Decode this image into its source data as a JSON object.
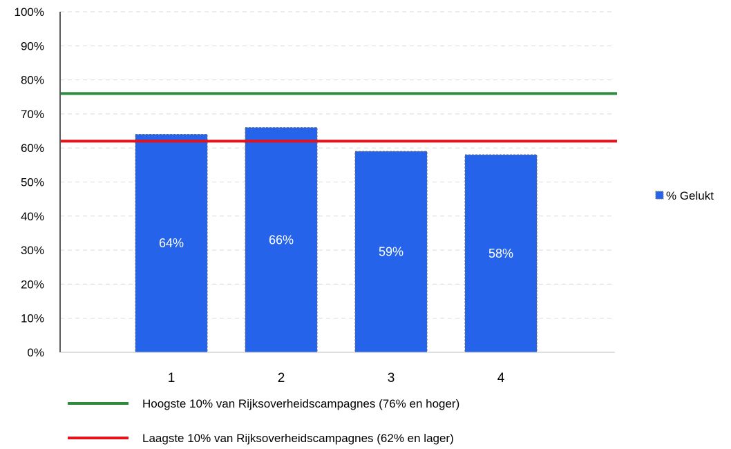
{
  "chart_data": {
    "type": "bar",
    "categories": [
      "1",
      "2",
      "3",
      "4"
    ],
    "series": [
      {
        "name": "% Gelukt",
        "values": [
          0.64,
          0.66,
          0.59,
          0.58
        ],
        "labels": [
          "64%",
          "66%",
          "59%",
          "58%"
        ],
        "color": "#2563eb"
      }
    ],
    "ylim": [
      0,
      1
    ],
    "yticks": [
      "0%",
      "10%",
      "20%",
      "30%",
      "40%",
      "50%",
      "60%",
      "70%",
      "80%",
      "90%",
      "100%"
    ],
    "grid": true,
    "legend_position": "right",
    "reference_lines": [
      {
        "value": 0.76,
        "color": "#2e8b3e",
        "label": "Hoogste 10% van Rijksoverheidscampagnes (76% en hoger)"
      },
      {
        "value": 0.62,
        "color": "#e3121b",
        "label": "Laagste 10% van Rijksoverheidscampagnes (62% en lager)"
      }
    ]
  }
}
